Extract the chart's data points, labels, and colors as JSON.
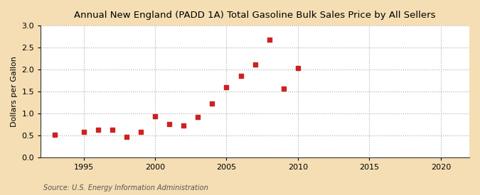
{
  "title": "Annual New England (PADD 1A) Total Gasoline Bulk Sales Price by All Sellers",
  "ylabel": "Dollars per Gallon",
  "source": "Source: U.S. Energy Information Administration",
  "fig_background_color": "#f5deb3",
  "plot_background_color": "#ffffff",
  "marker_color": "#cc2222",
  "years": [
    1993,
    1995,
    1996,
    1997,
    1998,
    1999,
    2000,
    2001,
    2002,
    2003,
    2004,
    2005,
    2006,
    2007,
    2008,
    2009,
    2010
  ],
  "values": [
    0.51,
    0.58,
    0.63,
    0.62,
    0.47,
    0.57,
    0.93,
    0.76,
    0.73,
    0.92,
    1.22,
    1.59,
    1.85,
    2.11,
    2.68,
    1.57,
    2.04
  ],
  "xlim": [
    1992,
    2022
  ],
  "ylim": [
    0.0,
    3.0
  ],
  "xticks": [
    1995,
    2000,
    2005,
    2010,
    2015,
    2020
  ],
  "yticks": [
    0.0,
    0.5,
    1.0,
    1.5,
    2.0,
    2.5,
    3.0
  ],
  "title_fontsize": 9.5,
  "label_fontsize": 8,
  "tick_fontsize": 8,
  "source_fontsize": 7,
  "grid_color": "#aaaaaa",
  "grid_linestyle": ":"
}
